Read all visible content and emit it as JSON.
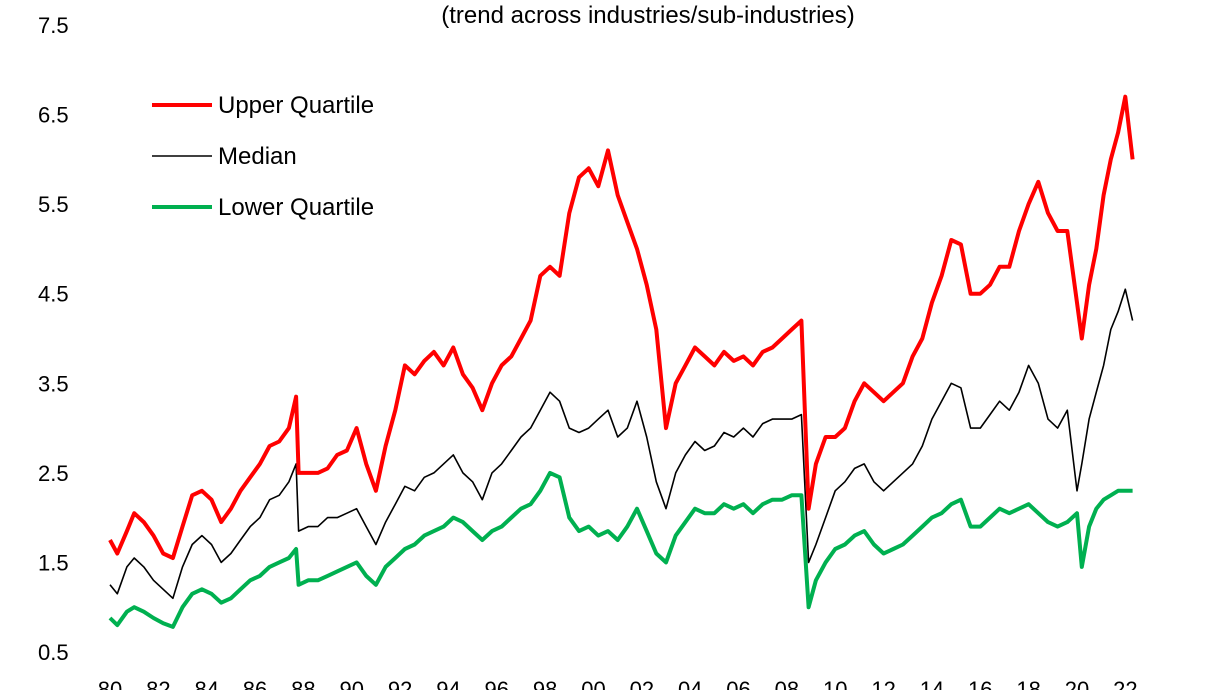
{
  "chart_data": {
    "type": "line",
    "title": "",
    "subtitle": "(trend across industries/sub-industries)",
    "xlabel": "",
    "ylabel": "",
    "ylim": [
      0.5,
      7.5
    ],
    "xlim": [
      1980,
      2022.4
    ],
    "y_ticks": [
      "7.5",
      "6.5",
      "5.5",
      "4.5",
      "3.5",
      "2.5",
      "1.5",
      "0.5"
    ],
    "x_ticks": [
      "80",
      "82",
      "84",
      "86",
      "88",
      "90",
      "92",
      "94",
      "96",
      "98",
      "00",
      "02",
      "04",
      "06",
      "08",
      "10",
      "12",
      "14",
      "16",
      "18",
      "20",
      "22"
    ],
    "grid": false,
    "legend": "top-left",
    "series": [
      {
        "name": "Upper Quartile",
        "color": "#ff0000",
        "x": [
          1980.0,
          1980.3,
          1980.7,
          1981.0,
          1981.4,
          1981.8,
          1982.2,
          1982.6,
          1983.0,
          1983.4,
          1983.8,
          1984.2,
          1984.6,
          1985.0,
          1985.4,
          1985.8,
          1986.2,
          1986.6,
          1987.0,
          1987.4,
          1987.7,
          1987.8,
          1988.2,
          1988.6,
          1989.0,
          1989.4,
          1989.8,
          1990.2,
          1990.6,
          1991.0,
          1991.4,
          1991.8,
          1992.2,
          1992.6,
          1993.0,
          1993.4,
          1993.8,
          1994.2,
          1994.6,
          1995.0,
          1995.4,
          1995.8,
          1996.2,
          1996.6,
          1997.0,
          1997.4,
          1997.8,
          1998.2,
          1998.6,
          1999.0,
          1999.4,
          1999.8,
          2000.2,
          2000.6,
          2001.0,
          2001.4,
          2001.8,
          2002.2,
          2002.6,
          2003.0,
          2003.4,
          2003.8,
          2004.2,
          2004.6,
          2005.0,
          2005.4,
          2005.8,
          2006.2,
          2006.6,
          2007.0,
          2007.4,
          2007.8,
          2008.2,
          2008.6,
          2008.9,
          2009.2,
          2009.6,
          2010.0,
          2010.4,
          2010.8,
          2011.2,
          2011.6,
          2012.0,
          2012.4,
          2012.8,
          2013.2,
          2013.6,
          2014.0,
          2014.4,
          2014.8,
          2015.2,
          2015.6,
          2016.0,
          2016.4,
          2016.8,
          2017.2,
          2017.6,
          2018.0,
          2018.4,
          2018.8,
          2019.2,
          2019.6,
          2020.0,
          2020.2,
          2020.5,
          2020.8,
          2021.1,
          2021.4,
          2021.7,
          2022.0,
          2022.3
        ],
        "values": [
          1.75,
          1.6,
          1.85,
          2.05,
          1.95,
          1.8,
          1.6,
          1.55,
          1.9,
          2.25,
          2.3,
          2.2,
          1.95,
          2.1,
          2.3,
          2.45,
          2.6,
          2.8,
          2.85,
          3.0,
          3.35,
          2.5,
          2.5,
          2.5,
          2.55,
          2.7,
          2.75,
          3.0,
          2.6,
          2.3,
          2.8,
          3.2,
          3.7,
          3.6,
          3.75,
          3.85,
          3.7,
          3.9,
          3.6,
          3.45,
          3.2,
          3.5,
          3.7,
          3.8,
          4.0,
          4.2,
          4.7,
          4.8,
          4.7,
          5.4,
          5.8,
          5.9,
          5.7,
          6.1,
          5.6,
          5.3,
          5.0,
          4.6,
          4.1,
          3.0,
          3.5,
          3.7,
          3.9,
          3.8,
          3.7,
          3.85,
          3.75,
          3.8,
          3.7,
          3.85,
          3.9,
          4.0,
          4.1,
          4.2,
          2.1,
          2.6,
          2.9,
          2.9,
          3.0,
          3.3,
          3.5,
          3.4,
          3.3,
          3.4,
          3.5,
          3.8,
          4.0,
          4.4,
          4.7,
          5.1,
          5.05,
          4.5,
          4.5,
          4.6,
          4.8,
          4.8,
          5.2,
          5.5,
          5.75,
          5.4,
          5.2,
          5.2,
          4.4,
          4.0,
          4.6,
          5.0,
          5.6,
          6.0,
          6.3,
          6.7,
          6.0
        ]
      },
      {
        "name": "Median",
        "color": "#000000",
        "x": [
          1980.0,
          1980.3,
          1980.7,
          1981.0,
          1981.4,
          1981.8,
          1982.2,
          1982.6,
          1983.0,
          1983.4,
          1983.8,
          1984.2,
          1984.6,
          1985.0,
          1985.4,
          1985.8,
          1986.2,
          1986.6,
          1987.0,
          1987.4,
          1987.7,
          1987.8,
          1988.2,
          1988.6,
          1989.0,
          1989.4,
          1989.8,
          1990.2,
          1990.6,
          1991.0,
          1991.4,
          1991.8,
          1992.2,
          1992.6,
          1993.0,
          1993.4,
          1993.8,
          1994.2,
          1994.6,
          1995.0,
          1995.4,
          1995.8,
          1996.2,
          1996.6,
          1997.0,
          1997.4,
          1997.8,
          1998.2,
          1998.6,
          1999.0,
          1999.4,
          1999.8,
          2000.2,
          2000.6,
          2001.0,
          2001.4,
          2001.8,
          2002.2,
          2002.6,
          2003.0,
          2003.4,
          2003.8,
          2004.2,
          2004.6,
          2005.0,
          2005.4,
          2005.8,
          2006.2,
          2006.6,
          2007.0,
          2007.4,
          2007.8,
          2008.2,
          2008.6,
          2008.9,
          2009.2,
          2009.6,
          2010.0,
          2010.4,
          2010.8,
          2011.2,
          2011.6,
          2012.0,
          2012.4,
          2012.8,
          2013.2,
          2013.6,
          2014.0,
          2014.4,
          2014.8,
          2015.2,
          2015.6,
          2016.0,
          2016.4,
          2016.8,
          2017.2,
          2017.6,
          2018.0,
          2018.4,
          2018.8,
          2019.2,
          2019.6,
          2020.0,
          2020.2,
          2020.5,
          2020.8,
          2021.1,
          2021.4,
          2021.7,
          2022.0,
          2022.3
        ],
        "values": [
          1.25,
          1.15,
          1.45,
          1.55,
          1.45,
          1.3,
          1.2,
          1.1,
          1.45,
          1.7,
          1.8,
          1.7,
          1.5,
          1.6,
          1.75,
          1.9,
          2.0,
          2.2,
          2.25,
          2.4,
          2.6,
          1.85,
          1.9,
          1.9,
          2.0,
          2.0,
          2.05,
          2.1,
          1.9,
          1.7,
          1.95,
          2.15,
          2.35,
          2.3,
          2.45,
          2.5,
          2.6,
          2.7,
          2.5,
          2.4,
          2.2,
          2.5,
          2.6,
          2.75,
          2.9,
          3.0,
          3.2,
          3.4,
          3.3,
          3.0,
          2.95,
          3.0,
          3.1,
          3.2,
          2.9,
          3.0,
          3.3,
          2.9,
          2.4,
          2.1,
          2.5,
          2.7,
          2.85,
          2.75,
          2.8,
          2.95,
          2.9,
          3.0,
          2.9,
          3.05,
          3.1,
          3.1,
          3.1,
          3.15,
          1.5,
          1.7,
          2.0,
          2.3,
          2.4,
          2.55,
          2.6,
          2.4,
          2.3,
          2.4,
          2.5,
          2.6,
          2.8,
          3.1,
          3.3,
          3.5,
          3.45,
          3.0,
          3.0,
          3.15,
          3.3,
          3.2,
          3.4,
          3.7,
          3.5,
          3.1,
          3.0,
          3.2,
          2.3,
          2.6,
          3.1,
          3.4,
          3.7,
          4.1,
          4.3,
          4.55,
          4.2
        ]
      },
      {
        "name": "Lower Quartile",
        "color": "#00b050",
        "x": [
          1980.0,
          1980.3,
          1980.7,
          1981.0,
          1981.4,
          1981.8,
          1982.2,
          1982.6,
          1983.0,
          1983.4,
          1983.8,
          1984.2,
          1984.6,
          1985.0,
          1985.4,
          1985.8,
          1986.2,
          1986.6,
          1987.0,
          1987.4,
          1987.7,
          1987.8,
          1988.2,
          1988.6,
          1989.0,
          1989.4,
          1989.8,
          1990.2,
          1990.6,
          1991.0,
          1991.4,
          1991.8,
          1992.2,
          1992.6,
          1993.0,
          1993.4,
          1993.8,
          1994.2,
          1994.6,
          1995.0,
          1995.4,
          1995.8,
          1996.2,
          1996.6,
          1997.0,
          1997.4,
          1997.8,
          1998.2,
          1998.6,
          1999.0,
          1999.4,
          1999.8,
          2000.2,
          2000.6,
          2001.0,
          2001.4,
          2001.8,
          2002.2,
          2002.6,
          2003.0,
          2003.4,
          2003.8,
          2004.2,
          2004.6,
          2005.0,
          2005.4,
          2005.8,
          2006.2,
          2006.6,
          2007.0,
          2007.4,
          2007.8,
          2008.2,
          2008.6,
          2008.9,
          2009.2,
          2009.6,
          2010.0,
          2010.4,
          2010.8,
          2011.2,
          2011.6,
          2012.0,
          2012.4,
          2012.8,
          2013.2,
          2013.6,
          2014.0,
          2014.4,
          2014.8,
          2015.2,
          2015.6,
          2016.0,
          2016.4,
          2016.8,
          2017.2,
          2017.6,
          2018.0,
          2018.4,
          2018.8,
          2019.2,
          2019.6,
          2020.0,
          2020.2,
          2020.5,
          2020.8,
          2021.1,
          2021.4,
          2021.7,
          2022.0,
          2022.3
        ],
        "values": [
          0.88,
          0.8,
          0.95,
          1.0,
          0.95,
          0.88,
          0.82,
          0.78,
          1.0,
          1.15,
          1.2,
          1.15,
          1.05,
          1.1,
          1.2,
          1.3,
          1.35,
          1.45,
          1.5,
          1.55,
          1.65,
          1.25,
          1.3,
          1.3,
          1.35,
          1.4,
          1.45,
          1.5,
          1.35,
          1.25,
          1.45,
          1.55,
          1.65,
          1.7,
          1.8,
          1.85,
          1.9,
          2.0,
          1.95,
          1.85,
          1.75,
          1.85,
          1.9,
          2.0,
          2.1,
          2.15,
          2.3,
          2.5,
          2.45,
          2.0,
          1.85,
          1.9,
          1.8,
          1.85,
          1.75,
          1.9,
          2.1,
          1.85,
          1.6,
          1.5,
          1.8,
          1.95,
          2.1,
          2.05,
          2.05,
          2.15,
          2.1,
          2.15,
          2.05,
          2.15,
          2.2,
          2.2,
          2.25,
          2.25,
          1.0,
          1.3,
          1.5,
          1.65,
          1.7,
          1.8,
          1.85,
          1.7,
          1.6,
          1.65,
          1.7,
          1.8,
          1.9,
          2.0,
          2.05,
          2.15,
          2.2,
          1.9,
          1.9,
          2.0,
          2.1,
          2.05,
          2.1,
          2.15,
          2.05,
          1.95,
          1.9,
          1.95,
          2.05,
          1.45,
          1.9,
          2.1,
          2.2,
          2.25,
          2.3,
          2.3,
          2.3
        ]
      }
    ]
  }
}
